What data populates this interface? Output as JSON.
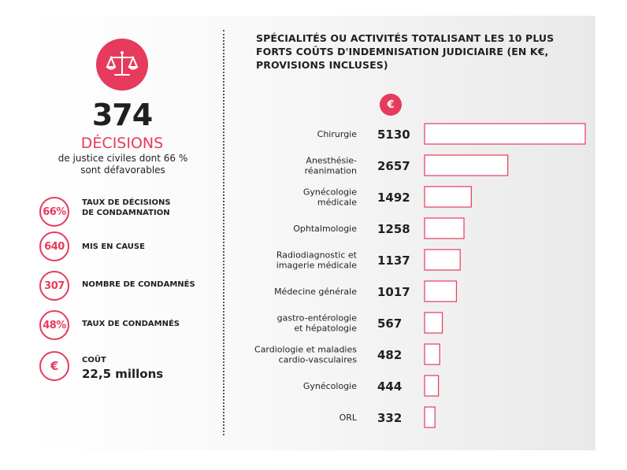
{
  "summary": {
    "decisions_count": "374",
    "decisions_label": "DÉCISIONS",
    "decisions_desc": "de justice civiles dont 66 %\nsont défavorables",
    "icon": "scale-icon"
  },
  "stats": [
    {
      "value": "66%",
      "label": "TAUX DE DÉCISIONS\nDE CONDAMNATION"
    },
    {
      "value": "640",
      "label": "MIS EN CAUSE"
    },
    {
      "value": "307",
      "label": "NOMBRE DE CONDAMNÉS"
    },
    {
      "value": "48%",
      "label": "TAUX DE CONDAMNÉS"
    },
    {
      "value": "€",
      "label": "COÛT",
      "amount": "22,5 millons"
    }
  ],
  "colors": {
    "accent": "#e63b5c",
    "text": "#231f20"
  },
  "chart_data": {
    "type": "bar",
    "orientation": "horizontal",
    "title": "SPÉCIALITÉS OU ACTIVITÉS TOTALISANT LES 10 PLUS FORTS COÛTS D'INDEMNISATION JUDICIAIRE (EN K€, PROVISIONS INCLUSES)",
    "unit_symbol": "€",
    "categories": [
      "Chirurgie",
      "Anesthésie-\nréanimation",
      "Gynécologie\nmédicale",
      "Ophtalmologie",
      "Radiodiagnostic et\nimagerie médicale",
      "Médecine générale",
      "gastro-entérologie\net hépatologie",
      "Cardiologie et maladies\ncardio-vasculaires",
      "Gynécologie",
      "ORL"
    ],
    "values": [
      5130,
      2657,
      1492,
      1258,
      1137,
      1017,
      567,
      482,
      444,
      332
    ],
    "bar_style": "outline",
    "bar_color": "#e63b5c",
    "grid": false
  }
}
